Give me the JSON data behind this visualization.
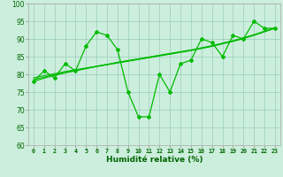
{
  "xlabel": "Humidité relative (%)",
  "xlim_min": -0.5,
  "xlim_max": 23.5,
  "ylim_min": 60,
  "ylim_max": 100,
  "yticks": [
    60,
    65,
    70,
    75,
    80,
    85,
    90,
    95,
    100
  ],
  "xticks": [
    0,
    1,
    2,
    3,
    4,
    5,
    6,
    7,
    8,
    9,
    10,
    11,
    12,
    13,
    14,
    15,
    16,
    17,
    18,
    19,
    20,
    21,
    22,
    23
  ],
  "bg_color": "#cceedd",
  "grid_color": "#99ccbb",
  "line_color": "#00bb00",
  "x_main": [
    0,
    1,
    2,
    3,
    4,
    5,
    6,
    7,
    8,
    9,
    10,
    11,
    12,
    13,
    14,
    15,
    16,
    17,
    18,
    19,
    20,
    21,
    22,
    23
  ],
  "y_main": [
    78,
    81,
    79,
    83,
    81,
    88,
    92,
    91,
    87,
    75,
    68,
    68,
    80,
    75,
    83,
    84,
    90,
    89,
    85,
    91,
    90,
    95,
    93,
    93
  ],
  "y_trend1": [
    78,
    78.9,
    79.7,
    80.4,
    81.0,
    81.6,
    82.2,
    82.7,
    83.2,
    83.7,
    84.2,
    84.7,
    85.2,
    85.7,
    86.2,
    86.7,
    87.3,
    87.9,
    88.6,
    89.3,
    90.1,
    91.0,
    92.0,
    93.0
  ],
  "y_trend2": [
    78.5,
    79.2,
    79.9,
    80.5,
    81.1,
    81.7,
    82.2,
    82.8,
    83.3,
    83.8,
    84.3,
    84.8,
    85.3,
    85.8,
    86.3,
    86.8,
    87.4,
    88.0,
    88.7,
    89.4,
    90.2,
    91.1,
    92.1,
    93.1
  ],
  "y_trend3": [
    79.0,
    79.6,
    80.2,
    80.8,
    81.3,
    81.8,
    82.3,
    82.8,
    83.4,
    83.9,
    84.4,
    84.9,
    85.4,
    85.9,
    86.4,
    86.9,
    87.5,
    88.1,
    88.8,
    89.5,
    90.3,
    91.2,
    92.2,
    93.2
  ]
}
